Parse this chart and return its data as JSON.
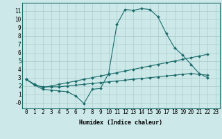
{
  "xlabel": "Humidex (Indice chaleur)",
  "xlim": [
    -0.5,
    23.5
  ],
  "ylim": [
    -0.7,
    12
  ],
  "background_color": "#cce8e8",
  "grid_color": "#aacccc",
  "line_color": "#1a6b6b",
  "line1_x": [
    0,
    1,
    2,
    3,
    4,
    5,
    6,
    7,
    8,
    9,
    10,
    11,
    12,
    13,
    14,
    15,
    16,
    17,
    18,
    19,
    20,
    21,
    22
  ],
  "line1_y": [
    2.8,
    2.1,
    1.6,
    1.5,
    1.4,
    1.3,
    0.8,
    -0.1,
    1.6,
    1.7,
    3.5,
    9.4,
    11.2,
    11.1,
    11.3,
    11.2,
    10.3,
    8.3,
    6.6,
    5.7,
    4.6,
    3.5,
    3.0
  ],
  "line2_x": [
    0,
    1,
    2,
    3,
    4,
    5,
    6,
    7,
    8,
    9,
    10,
    11,
    12,
    13,
    14,
    15,
    16,
    17,
    18,
    19,
    20,
    21,
    22
  ],
  "line2_y": [
    2.8,
    2.2,
    1.8,
    2.0,
    2.2,
    2.4,
    2.6,
    2.8,
    3.0,
    3.2,
    3.4,
    3.6,
    3.8,
    4.0,
    4.2,
    4.4,
    4.6,
    4.8,
    5.0,
    5.2,
    5.4,
    5.6,
    5.8
  ],
  "line3_x": [
    0,
    1,
    2,
    3,
    4,
    5,
    6,
    7,
    8,
    9,
    10,
    11,
    12,
    13,
    14,
    15,
    16,
    17,
    18,
    19,
    20,
    21,
    22
  ],
  "line3_y": [
    2.8,
    2.1,
    1.9,
    1.9,
    1.9,
    2.0,
    2.1,
    2.2,
    2.3,
    2.4,
    2.5,
    2.6,
    2.7,
    2.8,
    2.9,
    3.0,
    3.1,
    3.2,
    3.3,
    3.4,
    3.5,
    3.4,
    3.3
  ],
  "yticks": [
    0,
    1,
    2,
    3,
    4,
    5,
    6,
    7,
    8,
    9,
    10,
    11
  ],
  "ytick_labels": [
    "-0",
    "1",
    "2",
    "3",
    "4",
    "5",
    "6",
    "7",
    "8",
    "9",
    "10",
    "11"
  ],
  "xticks": [
    0,
    1,
    2,
    3,
    4,
    5,
    6,
    7,
    8,
    9,
    10,
    11,
    12,
    13,
    14,
    15,
    16,
    17,
    18,
    19,
    20,
    21,
    22,
    23
  ],
  "tick_fontsize": 5.5,
  "xlabel_fontsize": 6.0
}
